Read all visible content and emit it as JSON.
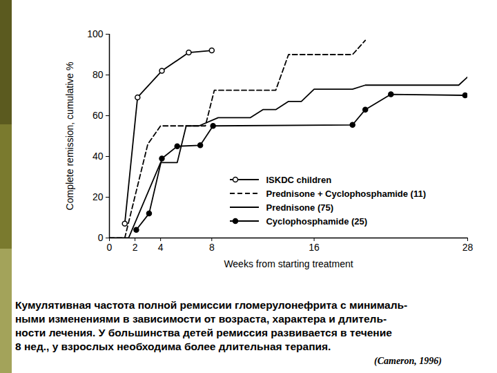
{
  "chart_data": {
    "type": "line",
    "x_label": "Weeks from starting treatment",
    "y_label": "Complete remission, cumulative %",
    "xlim": [
      0,
      28
    ],
    "xticks": [
      0,
      2,
      4,
      8,
      16,
      28
    ],
    "ylim": [
      0,
      100
    ],
    "yticks": [
      0,
      20,
      40,
      60,
      80,
      100
    ],
    "grid": false,
    "legend": "bottom-right",
    "series": [
      {
        "name": "ISKDC children",
        "color": "#000000",
        "marker": "circle_open",
        "line_style": "solid",
        "x": [
          1.2,
          2.2,
          4.1,
          6.2,
          8
        ],
        "values": [
          7,
          69,
          82,
          91,
          92
        ]
      },
      {
        "name": "Prednisone + Cyclophosphamide (11)",
        "color": "#000000",
        "marker": "none",
        "line_style": "dashed",
        "x": [
          0,
          1.2,
          3,
          4,
          7.5,
          8.2,
          13,
          14,
          19,
          20
        ],
        "values": [
          0,
          0,
          46,
          55,
          55,
          72.5,
          72.5,
          90,
          90,
          97
        ]
      },
      {
        "name": "Prednisone (75)",
        "color": "#000000",
        "marker": "none",
        "line_style": "solid",
        "x": [
          0,
          1.5,
          4,
          5.3,
          6,
          7,
          8.5,
          11,
          12,
          13,
          14,
          15,
          16,
          19,
          20,
          27.3,
          28
        ],
        "values": [
          0,
          0,
          37,
          37,
          55,
          55,
          59,
          59,
          63,
          63,
          67,
          67,
          73,
          73,
          75,
          75,
          79
        ]
      },
      {
        "name": "Cyclophosphamide (25)",
        "color": "#000000",
        "marker": "circle_filled",
        "line_style": "solid",
        "x": [
          2.1,
          3.1,
          4.1,
          5.3,
          7.1,
          8.1,
          19,
          20,
          22,
          27.8
        ],
        "values": [
          4,
          12,
          39,
          45,
          45.5,
          55,
          55.5,
          63,
          70.5,
          70
        ]
      }
    ],
    "caption": [
      "Кумулятивная частота полной ремиссии гломерулонефрита с минималь-",
      "ными изменениями в зависимости от возраста, характера и длитель-",
      "ности лечения. У большинства детей ремиссия развивается в течение",
      "8 нед., у взрослых необходима более длительная терапия."
    ],
    "source": "(Cameron, 1996)"
  }
}
